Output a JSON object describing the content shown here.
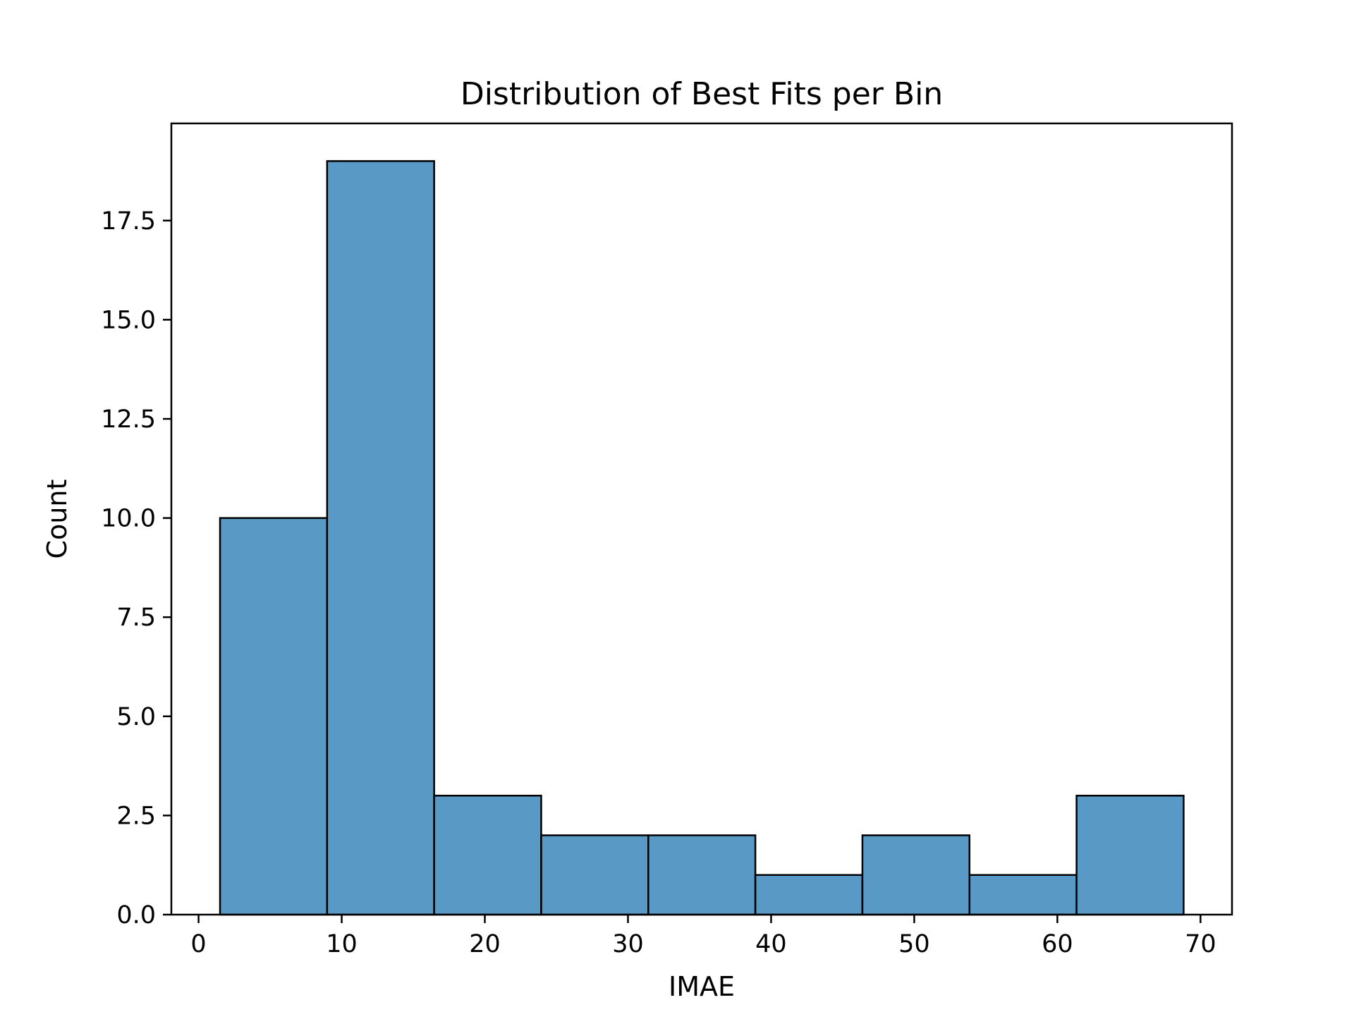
{
  "chart_data": {
    "type": "bar",
    "subtype": "histogram",
    "title": "Distribution of Best Fits per Bin",
    "xlabel": "IMAE",
    "ylabel": "Count",
    "bins": [
      {
        "x0": 1.5,
        "x1": 8.98,
        "count": 10
      },
      {
        "x0": 8.98,
        "x1": 16.46,
        "count": 19
      },
      {
        "x0": 16.46,
        "x1": 23.94,
        "count": 3
      },
      {
        "x0": 23.94,
        "x1": 31.42,
        "count": 2
      },
      {
        "x0": 31.42,
        "x1": 38.9,
        "count": 2
      },
      {
        "x0": 38.9,
        "x1": 46.38,
        "count": 1
      },
      {
        "x0": 46.38,
        "x1": 53.86,
        "count": 2
      },
      {
        "x0": 53.86,
        "x1": 61.34,
        "count": 1
      },
      {
        "x0": 61.34,
        "x1": 68.82,
        "count": 3
      }
    ],
    "xlim": [
      -1.9,
      72.2
    ],
    "ylim": [
      0,
      19.95
    ],
    "xticks": [
      0,
      10,
      20,
      30,
      40,
      50,
      60,
      70
    ],
    "xtick_labels": [
      "0",
      "10",
      "20",
      "30",
      "40",
      "50",
      "60",
      "70"
    ],
    "yticks": [
      0,
      2.5,
      5,
      7.5,
      10,
      12.5,
      15,
      17.5
    ],
    "ytick_labels": [
      "0.0",
      "2.5",
      "5.0",
      "7.5",
      "10.0",
      "12.5",
      "15.0",
      "17.5"
    ],
    "grid": false,
    "bar_color": "#5899c6",
    "edge_color": "#000000"
  }
}
